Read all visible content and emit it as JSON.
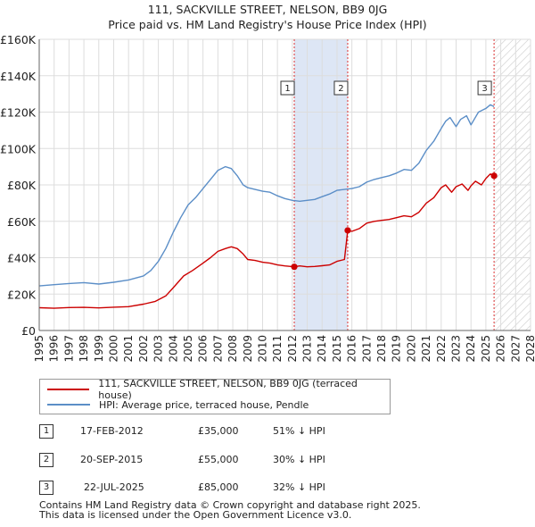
{
  "title": "111, SACKVILLE STREET, NELSON, BB9 0JG",
  "subtitle": "Price paid vs. HM Land Registry's House Price Index (HPI)",
  "colors": {
    "property": "#cc0000",
    "hpi": "#5b8ec7",
    "shade": "#dde6f5",
    "grid": "#dddddd"
  },
  "chart_data": {
    "type": "line",
    "xlim": [
      1995,
      2028
    ],
    "ylim": [
      0,
      160000
    ],
    "yticks": [
      {
        "value": 0,
        "label": "£0"
      },
      {
        "value": 20000,
        "label": "£20K"
      },
      {
        "value": 40000,
        "label": "£40K"
      },
      {
        "value": 60000,
        "label": "£60K"
      },
      {
        "value": 80000,
        "label": "£80K"
      },
      {
        "value": 100000,
        "label": "£100K"
      },
      {
        "value": 120000,
        "label": "£120K"
      },
      {
        "value": 140000,
        "label": "£140K"
      },
      {
        "value": 160000,
        "label": "£160K"
      }
    ],
    "xticks": [
      "1995",
      "1996",
      "1997",
      "1998",
      "1999",
      "2000",
      "2001",
      "2002",
      "2003",
      "2004",
      "2005",
      "2006",
      "2007",
      "2008",
      "2009",
      "2010",
      "2011",
      "2012",
      "2013",
      "2014",
      "2015",
      "2016",
      "2017",
      "2018",
      "2019",
      "2020",
      "2021",
      "2022",
      "2023",
      "2024",
      "2025",
      "2026",
      "2027",
      "2028"
    ],
    "shaded_range": [
      2012.13,
      2015.72
    ],
    "forecast_start": 2025.55,
    "series": [
      {
        "name": "111, SACKVILLE STREET, NELSON, BB9 0JG (terraced house)",
        "color": "#cc0000",
        "x": [
          1995,
          1996,
          1997,
          1998,
          1999,
          2000,
          2001,
          2002,
          2002.8,
          2003.5,
          2004,
          2004.7,
          2005.3,
          2006,
          2006.5,
          2007,
          2007.5,
          2007.9,
          2008.3,
          2008.7,
          2009,
          2009.5,
          2010,
          2010.5,
          2011,
          2011.5,
          2012.13,
          2012.5,
          2013,
          2013.5,
          2014,
          2014.5,
          2015,
          2015.5,
          2015.72,
          2016,
          2016.5,
          2017,
          2017.5,
          2018,
          2018.5,
          2019,
          2019.5,
          2020,
          2020.5,
          2021,
          2021.5,
          2022,
          2022.3,
          2022.7,
          2023,
          2023.4,
          2023.8,
          2024,
          2024.3,
          2024.7,
          2025,
          2025.3,
          2025.55
        ],
        "y": [
          12500,
          12200,
          12600,
          12700,
          12400,
          12800,
          13100,
          14500,
          16000,
          19000,
          23500,
          30000,
          33000,
          37000,
          40000,
          43500,
          45000,
          46000,
          45000,
          42000,
          39000,
          38500,
          37500,
          37000,
          36000,
          35500,
          35000,
          35500,
          35000,
          35200,
          35600,
          36000,
          38000,
          39000,
          55000,
          54500,
          56000,
          59000,
          60000,
          60500,
          61000,
          62000,
          63000,
          62500,
          65000,
          70000,
          73000,
          78500,
          80000,
          76000,
          79000,
          80500,
          77000,
          79500,
          82000,
          80000,
          83500,
          86000,
          85000
        ]
      },
      {
        "name": "HPI: Average price, terraced house, Pendle",
        "color": "#5b8ec7",
        "x": [
          1995,
          1996,
          1997,
          1998,
          1999,
          2000,
          2001,
          2002,
          2002.5,
          2003,
          2003.5,
          2004,
          2004.5,
          2005,
          2005.5,
          2006,
          2006.5,
          2007,
          2007.5,
          2007.9,
          2008.3,
          2008.7,
          2009,
          2009.5,
          2010,
          2010.5,
          2011,
          2011.5,
          2012,
          2012.5,
          2013,
          2013.5,
          2014,
          2014.5,
          2015,
          2015.5,
          2016,
          2016.5,
          2017,
          2017.5,
          2018,
          2018.5,
          2019,
          2019.5,
          2020,
          2020.5,
          2021,
          2021.5,
          2022,
          2022.3,
          2022.6,
          2023,
          2023.3,
          2023.7,
          2024,
          2024.5,
          2025,
          2025.3,
          2025.55
        ],
        "y": [
          24500,
          25200,
          25800,
          26300,
          25500,
          26500,
          27800,
          30000,
          33000,
          38000,
          45000,
          54000,
          62000,
          69000,
          73000,
          78000,
          83000,
          88000,
          90000,
          89000,
          85000,
          80000,
          78500,
          77500,
          76500,
          76000,
          74000,
          72500,
          71500,
          71000,
          71500,
          72000,
          73500,
          75000,
          77000,
          77500,
          78000,
          79000,
          81500,
          83000,
          84000,
          85000,
          86500,
          88500,
          88000,
          92000,
          99000,
          104000,
          111000,
          115000,
          117000,
          112000,
          116000,
          118000,
          113000,
          120000,
          122000,
          124000,
          123000
        ]
      }
    ],
    "transactions": [
      {
        "num": "1",
        "date": "17-FEB-2012",
        "x": 2012.13,
        "price": 35000,
        "price_label": "£35,000",
        "hpi_diff": "51% ↓ HPI"
      },
      {
        "num": "2",
        "date": "20-SEP-2015",
        "x": 2015.72,
        "price": 55000,
        "price_label": "£55,000",
        "hpi_diff": "30% ↓ HPI"
      },
      {
        "num": "3",
        "date": "22-JUL-2025",
        "x": 2025.55,
        "price": 85000,
        "price_label": "£85,000",
        "hpi_diff": "32% ↓ HPI"
      }
    ]
  },
  "legend": {
    "property_label": "111, SACKVILLE STREET, NELSON, BB9 0JG (terraced house)",
    "hpi_label": "HPI: Average price, terraced house, Pendle"
  },
  "footer": {
    "line1": "Contains HM Land Registry data © Crown copyright and database right 2025.",
    "line2": "This data is licensed under the Open Government Licence v3.0."
  }
}
